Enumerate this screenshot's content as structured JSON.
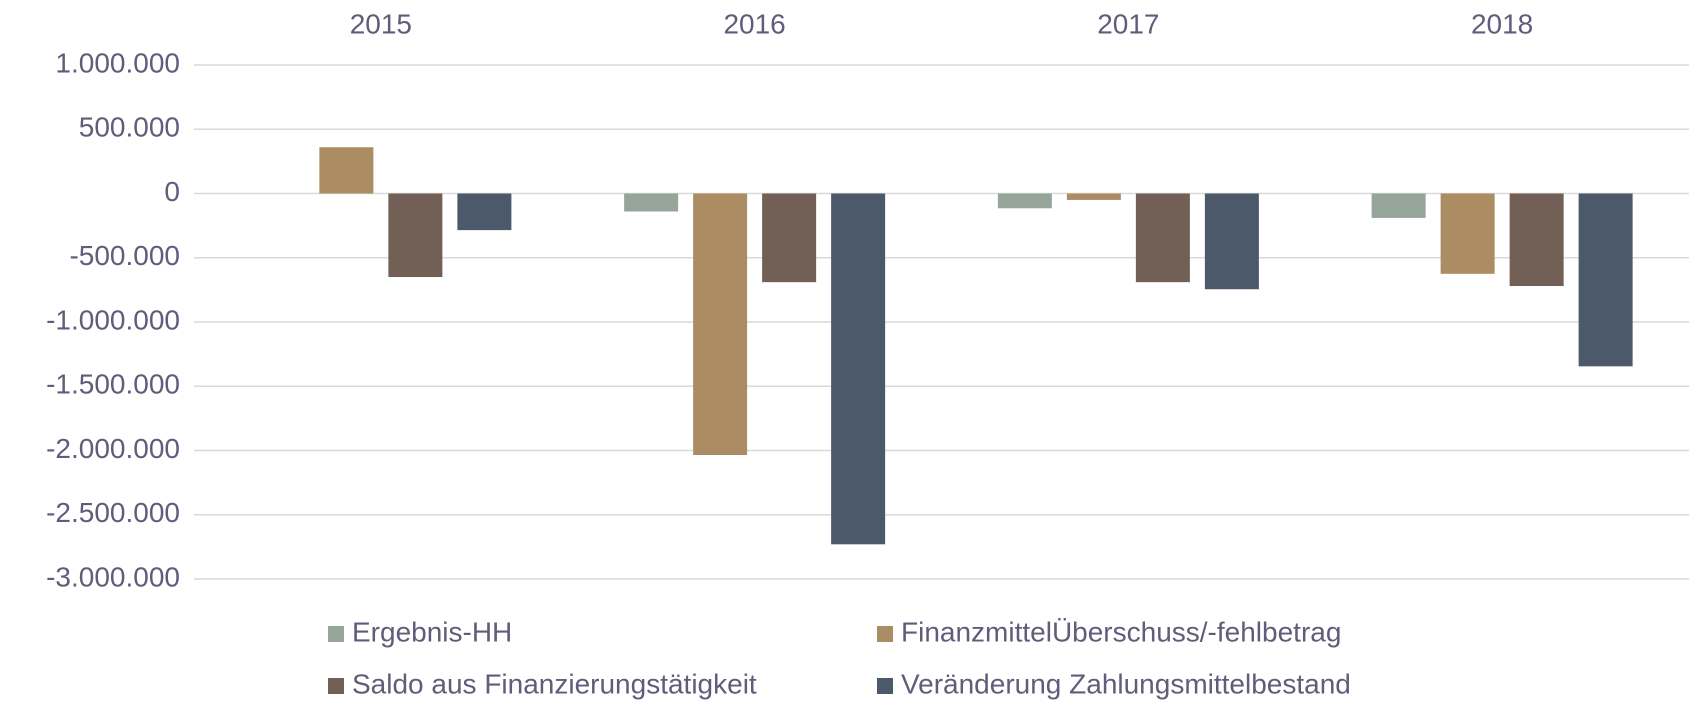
{
  "chart_data": {
    "type": "bar",
    "categories": [
      "2015",
      "2016",
      "2017",
      "2018"
    ],
    "series": [
      {
        "name": "Ergebnis-HH",
        "color": "#95a59a",
        "values": [
          null,
          -140000,
          -115000,
          -190000
        ]
      },
      {
        "name": "FinanzmittelÜberschuss/-fehlbetrag",
        "color": "#ab8c63",
        "values": [
          360000,
          -2035000,
          -50000,
          -625000
        ]
      },
      {
        "name": "Saldo aus Finanzierungstätigkeit",
        "color": "#725f55",
        "values": [
          -650000,
          -690000,
          -690000,
          -720000
        ]
      },
      {
        "name": "Veränderung Zahlungsmittelbestand",
        "color": "#4b596a",
        "values": [
          -285000,
          -2730000,
          -745000,
          -1345000
        ]
      }
    ],
    "ylim": [
      -3000000,
      1000000
    ],
    "yticks": [
      {
        "value": 1000000,
        "label": "1.000.000"
      },
      {
        "value": 500000,
        "label": "500.000"
      },
      0,
      {
        "value": -500000,
        "label": "-500.000"
      },
      {
        "value": -1000000,
        "label": "-1.000.000"
      },
      {
        "value": -1500000,
        "label": "-1.500.000"
      },
      {
        "value": -2000000,
        "label": "-2.000.000"
      },
      {
        "value": -2500000,
        "label": "-2.500.000"
      },
      {
        "value": -3000000,
        "label": "-3.000.000"
      }
    ],
    "grid": true,
    "legend": "bottom"
  }
}
